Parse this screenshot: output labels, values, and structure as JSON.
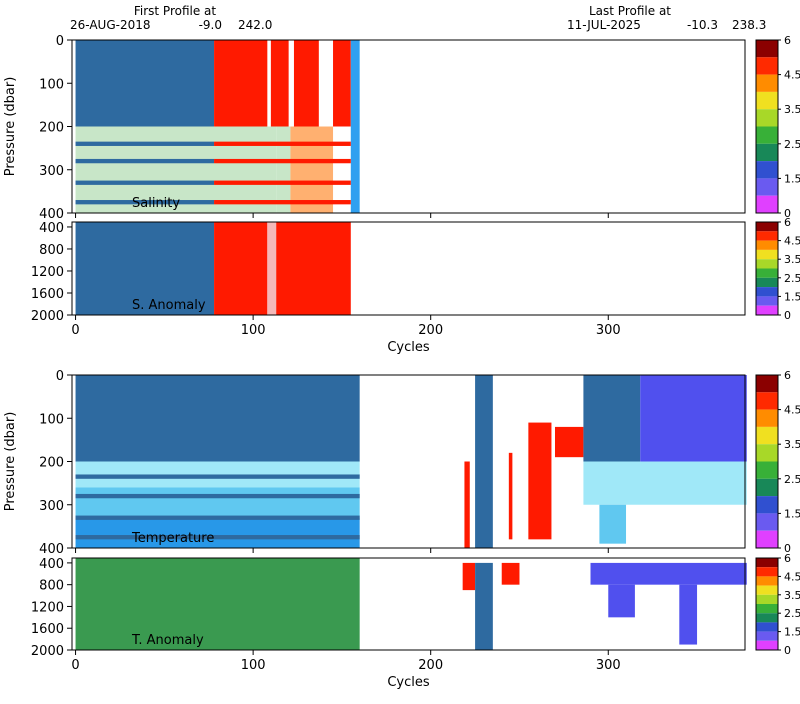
{
  "header": {
    "first_label": "First Profile at",
    "first_date": "26-AUG-2018",
    "first_lat": "-9.0",
    "first_lon": "242.0",
    "last_label": "Last Profile at",
    "last_date": "11-JUL-2025",
    "last_lat": "-10.3",
    "last_lon": "238.3"
  },
  "chart_data": [
    {
      "type": "heatmap",
      "label": "Salinity",
      "ylabel": "Pressure (dbar)",
      "xlim": [
        -2,
        377
      ],
      "ylim": [
        0,
        400
      ],
      "xticks": [
        0,
        100,
        200,
        300
      ],
      "yticks": [
        0,
        100,
        200,
        300,
        400
      ],
      "blocks": [
        {
          "x": [
            0,
            78
          ],
          "y": [
            0,
            200
          ],
          "color": "#2e6aa0"
        },
        {
          "x": [
            0,
            113
          ],
          "y": [
            200,
            400
          ],
          "color": "#c8e6c8"
        },
        {
          "x": [
            78,
            108
          ],
          "y": [
            0,
            200
          ],
          "color": "#ff1a00"
        },
        {
          "x": [
            110,
            120
          ],
          "y": [
            0,
            200
          ],
          "color": "#ff1a00"
        },
        {
          "x": [
            123,
            137
          ],
          "y": [
            0,
            200
          ],
          "color": "#ff1a00"
        },
        {
          "x": [
            145,
            155
          ],
          "y": [
            0,
            200
          ],
          "color": "#ff1a00"
        },
        {
          "x": [
            113,
            121
          ],
          "y": [
            200,
            400
          ],
          "color": "#c8e6c8"
        },
        {
          "x": [
            121,
            145
          ],
          "y": [
            200,
            400
          ],
          "color": "#ffb070"
        },
        {
          "x": [
            155,
            160
          ],
          "y": [
            0,
            400
          ],
          "color": "#30a0f0"
        },
        {
          "x": [
            0,
            78
          ],
          "y": [
            235,
            245
          ],
          "color": "#2e6aa0"
        },
        {
          "x": [
            0,
            78
          ],
          "y": [
            275,
            285
          ],
          "color": "#2e6aa0"
        },
        {
          "x": [
            0,
            78
          ],
          "y": [
            325,
            335
          ],
          "color": "#2e6aa0"
        },
        {
          "x": [
            0,
            78
          ],
          "y": [
            370,
            380
          ],
          "color": "#2e6aa0"
        },
        {
          "x": [
            78,
            155
          ],
          "y": [
            235,
            245
          ],
          "color": "#ff1a00"
        },
        {
          "x": [
            78,
            155
          ],
          "y": [
            275,
            285
          ],
          "color": "#ff1a00"
        },
        {
          "x": [
            78,
            155
          ],
          "y": [
            325,
            335
          ],
          "color": "#ff1a00"
        },
        {
          "x": [
            78,
            155
          ],
          "y": [
            370,
            380
          ],
          "color": "#ff1a00"
        }
      ],
      "colorbar": {
        "colors": [
          "#8b0000",
          "#ff2a00",
          "#ff8c00",
          "#f0e020",
          "#a8d828",
          "#38b038",
          "#188858",
          "#3050d0",
          "#6a5af0",
          "#e040ff"
        ],
        "ticks": [
          6,
          4.5,
          3.5,
          2.5,
          1.5,
          0
        ]
      }
    },
    {
      "type": "heatmap",
      "label": "S. Anomaly",
      "xlabel": "Cycles",
      "xlim": [
        -2,
        377
      ],
      "ylim": [
        310,
        2000
      ],
      "xticks": [
        0,
        100,
        200,
        300
      ],
      "yticks": [
        400,
        800,
        1200,
        1600,
        2000
      ],
      "blocks": [
        {
          "x": [
            0,
            78
          ],
          "y": [
            310,
            2000
          ],
          "color": "#2e6aa0"
        },
        {
          "x": [
            78,
            108
          ],
          "y": [
            310,
            2000
          ],
          "color": "#ff1a00"
        },
        {
          "x": [
            108,
            113
          ],
          "y": [
            310,
            2000
          ],
          "color": "#f4b8b8"
        },
        {
          "x": [
            113,
            155
          ],
          "y": [
            310,
            2000
          ],
          "color": "#ff1a00"
        }
      ],
      "colorbar": {
        "colors": [
          "#8b0000",
          "#ff2a00",
          "#ff8c00",
          "#f0e020",
          "#a8d828",
          "#38b038",
          "#188858",
          "#3050d0",
          "#6a5af0",
          "#e040ff"
        ],
        "ticks": [
          6,
          4.5,
          3.5,
          2.5,
          1.5,
          0
        ]
      }
    },
    {
      "type": "heatmap",
      "label": "Temperature",
      "ylabel": "Pressure (dbar)",
      "xlim": [
        -2,
        377
      ],
      "ylim": [
        0,
        400
      ],
      "xticks": [
        0,
        100,
        200,
        300
      ],
      "yticks": [
        0,
        100,
        200,
        300,
        400
      ],
      "blocks": [
        {
          "x": [
            0,
            160
          ],
          "y": [
            0,
            200
          ],
          "color": "#2e6aa0"
        },
        {
          "x": [
            0,
            160
          ],
          "y": [
            200,
            260
          ],
          "color": "#a0e8f8"
        },
        {
          "x": [
            0,
            160
          ],
          "y": [
            260,
            330
          ],
          "color": "#60c8f0"
        },
        {
          "x": [
            0,
            160
          ],
          "y": [
            330,
            400
          ],
          "color": "#2898e8"
        },
        {
          "x": [
            0,
            160
          ],
          "y": [
            230,
            240
          ],
          "color": "#2e6aa0"
        },
        {
          "x": [
            0,
            160
          ],
          "y": [
            275,
            285
          ],
          "color": "#2e6aa0"
        },
        {
          "x": [
            0,
            160
          ],
          "y": [
            325,
            335
          ],
          "color": "#2e6aa0"
        },
        {
          "x": [
            0,
            160
          ],
          "y": [
            370,
            380
          ],
          "color": "#2e6aa0"
        },
        {
          "x": [
            219,
            222
          ],
          "y": [
            200,
            400
          ],
          "color": "#ff1a00"
        },
        {
          "x": [
            225,
            235
          ],
          "y": [
            0,
            400
          ],
          "color": "#2e6aa0"
        },
        {
          "x": [
            244,
            246
          ],
          "y": [
            180,
            380
          ],
          "color": "#ff1a00"
        },
        {
          "x": [
            255,
            268
          ],
          "y": [
            110,
            380
          ],
          "color": "#ff1a00"
        },
        {
          "x": [
            270,
            286
          ],
          "y": [
            120,
            190
          ],
          "color": "#ff1a00"
        },
        {
          "x": [
            286,
            318
          ],
          "y": [
            0,
            200
          ],
          "color": "#2e6aa0"
        },
        {
          "x": [
            318,
            378
          ],
          "y": [
            0,
            200
          ],
          "color": "#5050ee"
        },
        {
          "x": [
            286,
            378
          ],
          "y": [
            200,
            300
          ],
          "color": "#a0e8f8"
        },
        {
          "x": [
            295,
            310
          ],
          "y": [
            300,
            390
          ],
          "color": "#60c8f0"
        }
      ],
      "colorbar": {
        "colors": [
          "#8b0000",
          "#ff2a00",
          "#ff8c00",
          "#f0e020",
          "#a8d828",
          "#38b038",
          "#188858",
          "#3050d0",
          "#6a5af0",
          "#e040ff"
        ],
        "ticks": [
          6,
          4.5,
          3.5,
          2.5,
          1.5,
          0
        ]
      }
    },
    {
      "type": "heatmap",
      "label": "T. Anomaly",
      "xlabel": "Cycles",
      "xlim": [
        -2,
        377
      ],
      "ylim": [
        310,
        2000
      ],
      "xticks": [
        0,
        100,
        200,
        300
      ],
      "yticks": [
        400,
        800,
        1200,
        1600,
        2000
      ],
      "blocks": [
        {
          "x": [
            0,
            160
          ],
          "y": [
            310,
            2000
          ],
          "color": "#3a9a50"
        },
        {
          "x": [
            218,
            225
          ],
          "y": [
            400,
            900
          ],
          "color": "#ff1a00"
        },
        {
          "x": [
            225,
            235
          ],
          "y": [
            400,
            2000
          ],
          "color": "#2e6aa0"
        },
        {
          "x": [
            240,
            250
          ],
          "y": [
            400,
            800
          ],
          "color": "#ff1a00"
        },
        {
          "x": [
            290,
            378
          ],
          "y": [
            400,
            800
          ],
          "color": "#5050ee"
        },
        {
          "x": [
            300,
            315
          ],
          "y": [
            800,
            1400
          ],
          "color": "#5050ee"
        },
        {
          "x": [
            340,
            350
          ],
          "y": [
            800,
            1900
          ],
          "color": "#5050ee"
        }
      ],
      "colorbar": {
        "colors": [
          "#8b0000",
          "#ff2a00",
          "#ff8c00",
          "#f0e020",
          "#a8d828",
          "#38b038",
          "#188858",
          "#3050d0",
          "#6a5af0",
          "#e040ff"
        ],
        "ticks": [
          6,
          4.5,
          3.5,
          2.5,
          1.5,
          0
        ]
      }
    }
  ]
}
